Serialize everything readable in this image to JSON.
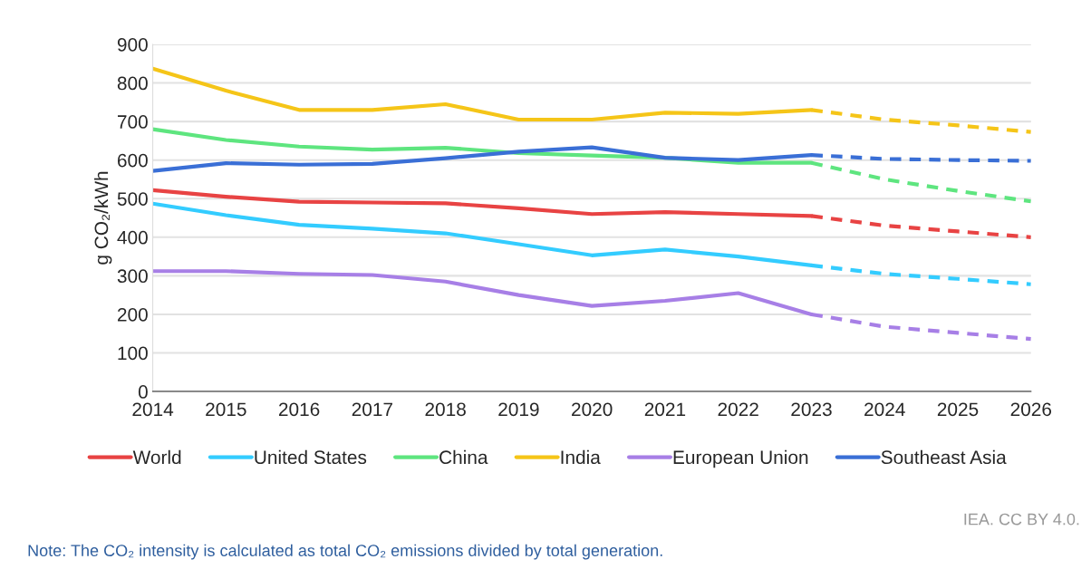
{
  "chart_data": {
    "type": "line",
    "ylabel": "g CO₂/kWh",
    "x": [
      2014,
      2015,
      2016,
      2017,
      2018,
      2019,
      2020,
      2021,
      2022,
      2023
    ],
    "xlim": [
      2014,
      2026
    ],
    "xticks": [
      2014,
      2015,
      2016,
      2017,
      2018,
      2019,
      2020,
      2021,
      2022,
      2023,
      2024,
      2025,
      2026
    ],
    "ylim": [
      0,
      900
    ],
    "yticks": [
      0,
      100,
      200,
      300,
      400,
      500,
      600,
      700,
      800,
      900
    ],
    "grid": "y",
    "legend": "bottom",
    "line_style": "solid",
    "series": [
      {
        "name": "World",
        "color": "#e84343",
        "values": [
          522,
          505,
          492,
          490,
          488,
          475,
          460,
          465,
          460,
          455
        ]
      },
      {
        "name": "United States",
        "color": "#33ccff",
        "values": [
          487,
          457,
          432,
          422,
          410,
          382,
          353,
          368,
          350,
          327
        ]
      },
      {
        "name": "China",
        "color": "#5ee57f",
        "values": [
          680,
          652,
          635,
          627,
          632,
          618,
          612,
          606,
          593,
          593
        ]
      },
      {
        "name": "India",
        "color": "#f5c518",
        "values": [
          837,
          780,
          730,
          730,
          745,
          705,
          705,
          723,
          720,
          730
        ]
      },
      {
        "name": "European Union",
        "color": "#a77fe6",
        "values": [
          312,
          312,
          305,
          302,
          285,
          250,
          222,
          235,
          255,
          200
        ]
      },
      {
        "name": "Southeast Asia",
        "color": "#3a6fd6",
        "values": [
          572,
          592,
          588,
          590,
          605,
          622,
          633,
          606,
          600,
          613
        ]
      },
      {
        "color": "#e84343",
        "line_style": "dashed",
        "x": [
          2023,
          2024,
          2025,
          2026
        ],
        "values": [
          455,
          430,
          415,
          400
        ]
      },
      {
        "color": "#33ccff",
        "line_style": "dashed",
        "x": [
          2023,
          2024,
          2025,
          2026
        ],
        "values": [
          327,
          305,
          292,
          278
        ]
      },
      {
        "color": "#5ee57f",
        "line_style": "dashed",
        "x": [
          2023,
          2024,
          2025,
          2026
        ],
        "values": [
          593,
          550,
          520,
          493
        ]
      },
      {
        "color": "#f5c518",
        "line_style": "dashed",
        "x": [
          2023,
          2024,
          2025,
          2026
        ],
        "values": [
          730,
          705,
          690,
          673
        ]
      },
      {
        "color": "#a77fe6",
        "line_style": "dashed",
        "x": [
          2023,
          2024,
          2025,
          2026
        ],
        "values": [
          200,
          168,
          152,
          136
        ]
      },
      {
        "color": "#3a6fd6",
        "line_style": "dashed",
        "x": [
          2023,
          2024,
          2025,
          2026
        ],
        "values": [
          613,
          603,
          600,
          598
        ]
      }
    ],
    "annotations": [
      "IEA. CC BY 4.0.",
      "Note: The CO₂ intensity is calculated as total CO₂ emissions divided by total generation."
    ]
  }
}
